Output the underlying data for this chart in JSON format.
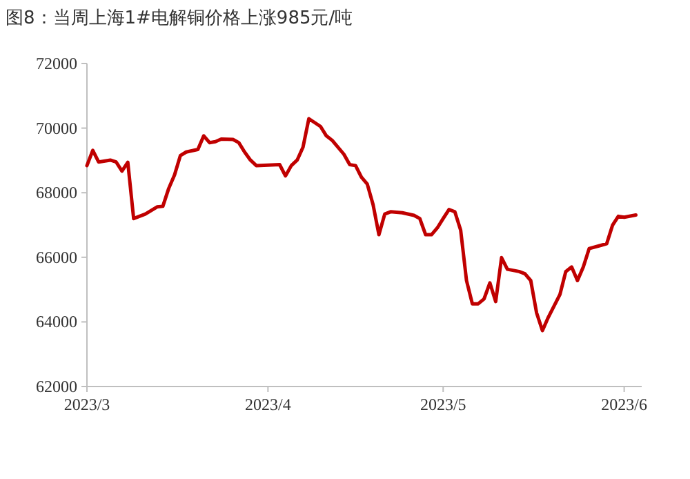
{
  "chart_data": {
    "type": "line",
    "title": "图8：当周上海1#电解铜价格上涨985元/吨",
    "x": [
      "2023-03-01",
      "2023-03-02",
      "2023-03-03",
      "2023-03-05",
      "2023-03-06",
      "2023-03-07",
      "2023-03-08",
      "2023-03-09",
      "2023-03-11",
      "2023-03-13",
      "2023-03-14",
      "2023-03-15",
      "2023-03-16",
      "2023-03-17",
      "2023-03-18",
      "2023-03-20",
      "2023-03-21",
      "2023-03-22",
      "2023-03-23",
      "2023-03-24",
      "2023-03-26",
      "2023-03-27",
      "2023-03-28",
      "2023-03-29",
      "2023-03-30",
      "2023-04-03",
      "2023-04-04",
      "2023-04-05",
      "2023-04-06",
      "2023-04-07",
      "2023-04-08",
      "2023-04-10",
      "2023-04-11",
      "2023-04-12",
      "2023-04-14",
      "2023-04-15",
      "2023-04-16",
      "2023-04-17",
      "2023-04-18",
      "2023-04-19",
      "2023-04-20",
      "2023-04-21",
      "2023-04-22",
      "2023-04-24",
      "2023-04-26",
      "2023-04-27",
      "2023-04-28",
      "2023-04-29",
      "2023-04-30",
      "2023-05-01",
      "2023-05-02",
      "2023-05-03",
      "2023-05-04",
      "2023-05-05",
      "2023-05-06",
      "2023-05-07",
      "2023-05-08",
      "2023-05-09",
      "2023-05-10",
      "2023-05-11",
      "2023-05-12",
      "2023-05-14",
      "2023-05-15",
      "2023-05-16",
      "2023-05-17",
      "2023-05-18",
      "2023-05-19",
      "2023-05-21",
      "2023-05-22",
      "2023-05-23",
      "2023-05-24",
      "2023-05-25",
      "2023-05-26",
      "2023-05-28",
      "2023-05-29",
      "2023-05-30",
      "2023-05-31",
      "2023-06-01",
      "2023-06-03"
    ],
    "series": [
      {
        "color": "#c00000",
        "values": [
          68840,
          69310,
          68950,
          69010,
          68950,
          68670,
          68940,
          67200,
          67340,
          67560,
          67580,
          68130,
          68550,
          69150,
          69260,
          69340,
          69760,
          69550,
          69580,
          69660,
          69650,
          69550,
          69260,
          69010,
          68840,
          68870,
          68520,
          68840,
          69010,
          69410,
          70290,
          70050,
          69760,
          69620,
          69190,
          68870,
          68840,
          68480,
          68270,
          67630,
          66700,
          67340,
          67410,
          67380,
          67300,
          67200,
          66700,
          66700,
          66910,
          67200,
          67480,
          67410,
          66840,
          65280,
          64560,
          64560,
          64710,
          65210,
          64630,
          65990,
          65630,
          65560,
          65490,
          65280,
          64280,
          63730,
          64140,
          64850,
          65560,
          65700,
          65280,
          65700,
          66270,
          66370,
          66420,
          66990,
          67270,
          67240,
          67310
        ]
      }
    ],
    "xlim": [
      "2023-03-01",
      "2023-06-04"
    ],
    "xticks": [
      {
        "value": "2023-03-01",
        "label": "2023/3"
      },
      {
        "value": "2023-04-01",
        "label": "2023/4"
      },
      {
        "value": "2023-05-01",
        "label": "2023/5"
      },
      {
        "value": "2023-06-01",
        "label": "2023/6"
      }
    ],
    "ylim": [
      62000,
      72000
    ],
    "yticks": [
      62000,
      64000,
      66000,
      68000,
      70000,
      72000
    ]
  }
}
